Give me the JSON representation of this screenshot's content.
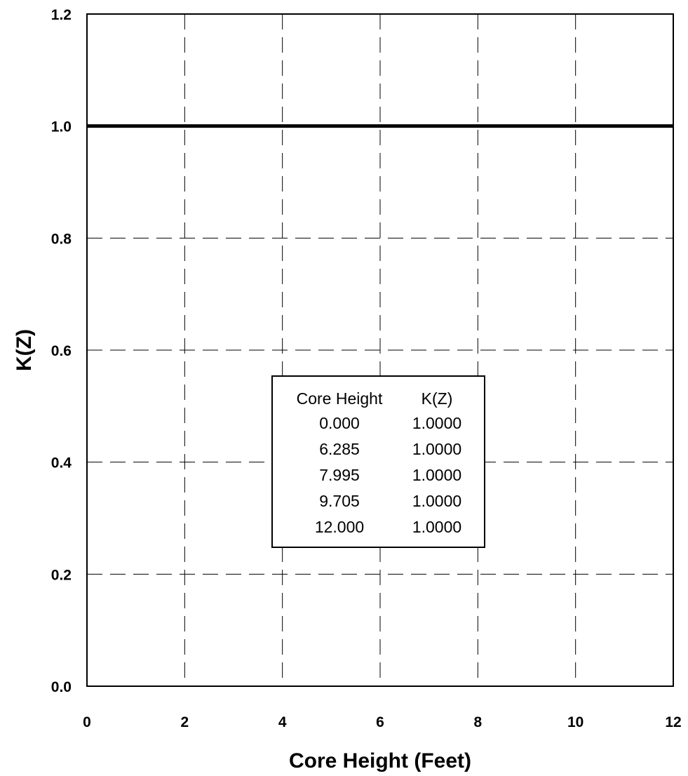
{
  "chart_data": {
    "type": "line",
    "title": "",
    "xlabel": "Core Height (Feet)",
    "ylabel": "K(Z)",
    "xlim": [
      0,
      12
    ],
    "ylim": [
      0,
      1.2
    ],
    "x_ticks": [
      "0",
      "2",
      "4",
      "6",
      "8",
      "10",
      "12"
    ],
    "y_ticks": [
      "0.0",
      "0.2",
      "0.4",
      "0.6",
      "0.8",
      "1.0",
      "1.2"
    ],
    "grid": true,
    "legend": false,
    "series": [
      {
        "x": [
          0.0,
          6.285,
          7.995,
          9.705,
          12.0
        ],
        "y": [
          1.0,
          1.0,
          1.0,
          1.0,
          1.0
        ]
      }
    ],
    "table": {
      "headers": [
        "Core Height",
        "K(Z)"
      ],
      "rows": [
        [
          "0.000",
          "1.0000"
        ],
        [
          "6.285",
          "1.0000"
        ],
        [
          "7.995",
          "1.0000"
        ],
        [
          "9.705",
          "1.0000"
        ],
        [
          "12.000",
          "1.0000"
        ]
      ]
    }
  }
}
